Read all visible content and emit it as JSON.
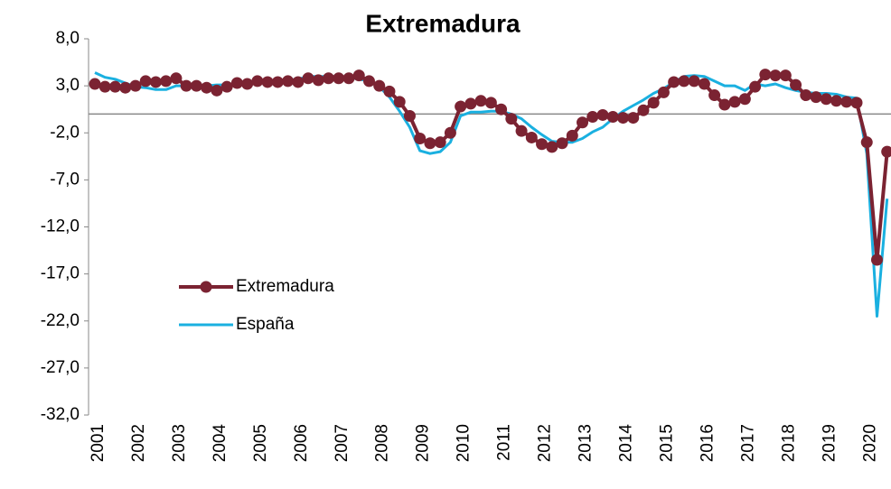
{
  "chart_data": {
    "type": "line",
    "title": "Extremadura",
    "categories": [
      "2001",
      null,
      null,
      null,
      "2002",
      null,
      null,
      null,
      "2003",
      null,
      null,
      null,
      "2004",
      null,
      null,
      null,
      "2005",
      null,
      null,
      null,
      "2006",
      null,
      null,
      null,
      "2007",
      null,
      null,
      null,
      "2008",
      null,
      null,
      null,
      "2009",
      null,
      null,
      null,
      "2010",
      null,
      null,
      null,
      "2011",
      null,
      null,
      null,
      "2012",
      null,
      null,
      null,
      "2013",
      null,
      null,
      null,
      "2014",
      null,
      null,
      null,
      "2015",
      null,
      null,
      null,
      "2016",
      null,
      null,
      null,
      "2017",
      null,
      null,
      null,
      "2018",
      null,
      null,
      null,
      "2019",
      null,
      null,
      null,
      "2020",
      null,
      null
    ],
    "series": [
      {
        "name": "Extremadura",
        "color": "#7b2332",
        "markers": true,
        "values": [
          3.2,
          2.9,
          2.9,
          2.8,
          3.0,
          3.5,
          3.4,
          3.5,
          3.8,
          3.0,
          3.0,
          2.8,
          2.5,
          2.9,
          3.3,
          3.2,
          3.5,
          3.4,
          3.4,
          3.5,
          3.4,
          3.8,
          3.6,
          3.8,
          3.8,
          3.8,
          4.1,
          3.5,
          3.0,
          2.4,
          1.3,
          -0.2,
          -2.6,
          -3.1,
          -3.0,
          -2.0,
          0.8,
          1.1,
          1.4,
          1.2,
          0.5,
          -0.5,
          -1.8,
          -2.5,
          -3.2,
          -3.5,
          -3.1,
          -2.3,
          -0.9,
          -0.3,
          -0.1,
          -0.3,
          -0.4,
          -0.4,
          0.4,
          1.2,
          2.3,
          3.4,
          3.5,
          3.5,
          3.2,
          2.0,
          1.0,
          1.3,
          1.6,
          2.9,
          4.2,
          4.1,
          4.1,
          3.1,
          2.0,
          1.8,
          1.6,
          1.4,
          1.3,
          1.2,
          -3.0,
          -15.5,
          -4.0
        ]
      },
      {
        "name": "España",
        "color": "#1ab0e0",
        "markers": false,
        "values": [
          4.4,
          3.9,
          3.7,
          3.3,
          2.9,
          2.8,
          2.6,
          2.6,
          3.0,
          3.0,
          3.1,
          3.0,
          3.1,
          3.1,
          3.2,
          3.3,
          3.4,
          3.5,
          3.6,
          3.6,
          3.7,
          4.0,
          4.0,
          4.0,
          4.0,
          3.9,
          3.7,
          3.5,
          2.9,
          1.8,
          0.3,
          -1.4,
          -3.9,
          -4.2,
          -4.0,
          -3.0,
          -0.2,
          0.2,
          0.2,
          0.3,
          0.3,
          0.0,
          -0.5,
          -1.4,
          -2.2,
          -2.9,
          -3.0,
          -3.0,
          -2.6,
          -1.9,
          -1.4,
          -0.5,
          0.3,
          0.9,
          1.5,
          2.2,
          2.7,
          3.4,
          4.0,
          4.1,
          4.0,
          3.5,
          3.0,
          3.0,
          2.5,
          3.2,
          3.0,
          3.2,
          2.8,
          2.5,
          2.3,
          2.2,
          2.2,
          2.1,
          1.8,
          1.7,
          -4.2,
          -21.5,
          -9.0
        ]
      }
    ],
    "ylim": [
      -32,
      8
    ],
    "yticks": [
      {
        "value": 8,
        "label": "8,0"
      },
      {
        "value": 3,
        "label": "3,0"
      },
      {
        "value": -2,
        "label": "-2,0"
      },
      {
        "value": -7,
        "label": "-7,0"
      },
      {
        "value": -12,
        "label": "-12,0"
      },
      {
        "value": -17,
        "label": "-17,0"
      },
      {
        "value": -22,
        "label": "-22,0"
      },
      {
        "value": -27,
        "label": "-27,0"
      },
      {
        "value": -32,
        "label": "-32,0"
      }
    ],
    "zero_line": true
  }
}
